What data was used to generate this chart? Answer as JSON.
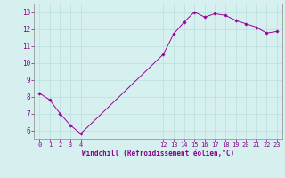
{
  "x": [
    0,
    1,
    2,
    3,
    4,
    12,
    13,
    14,
    15,
    16,
    17,
    18,
    19,
    20,
    21,
    22,
    23
  ],
  "y": [
    8.2,
    7.8,
    7.0,
    6.3,
    5.8,
    10.5,
    11.7,
    12.4,
    13.0,
    12.7,
    12.9,
    12.8,
    12.5,
    12.3,
    12.1,
    11.75,
    11.85
  ],
  "line_color": "#990099",
  "marker": "D",
  "marker_size": 1.8,
  "bg_color": "#d6f0ef",
  "grid_color": "#b8dedd",
  "xlabel": "Windchill (Refroidissement éolien,°C)",
  "xlabel_color": "#880088",
  "tick_color": "#880088",
  "ylim": [
    5.5,
    13.5
  ],
  "yticks": [
    6,
    7,
    8,
    9,
    10,
    11,
    12,
    13
  ],
  "xticks": [
    0,
    1,
    2,
    3,
    4,
    12,
    13,
    14,
    15,
    16,
    17,
    18,
    19,
    20,
    21,
    22,
    23
  ],
  "xlim": [
    -0.5,
    23.5
  ],
  "spine_color": "#888888"
}
